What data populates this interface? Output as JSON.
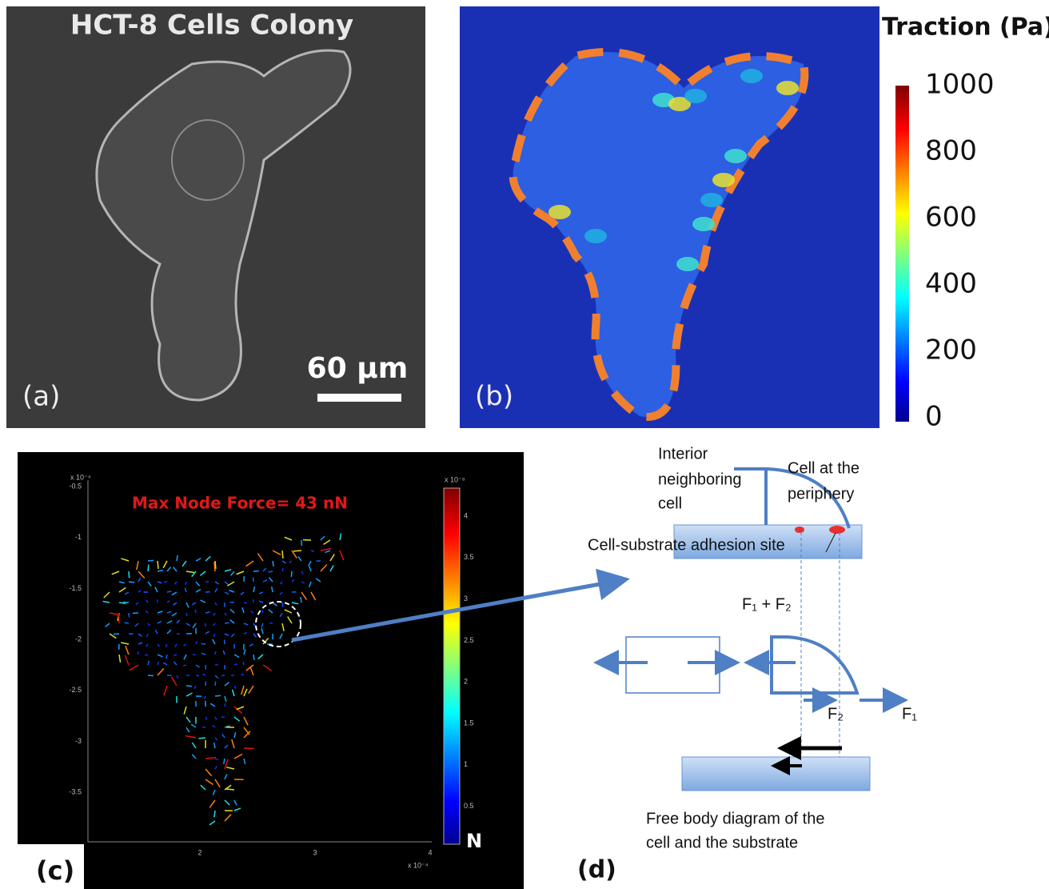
{
  "panels": [
    {
      "label": "(a)",
      "title": "HCT-8 Cells Colony",
      "scale_bar": "60 µm"
    },
    {
      "label": "(b)",
      "colorbar": {
        "title": "Traction (Pa)",
        "ticks": [
          1000,
          800,
          600,
          400,
          200,
          0
        ]
      }
    },
    {
      "label": "(c)",
      "annotation": "Max Node Force= 43 nN",
      "y_ticks": [
        -0.5,
        -1,
        -1.5,
        -2,
        -2.5,
        -3,
        -3.5
      ],
      "y_exponent": "x 10⁻⁴",
      "x_ticks": [
        2,
        3,
        4
      ],
      "x_exponent": "x 10⁻⁴",
      "colorbar": {
        "ticks": [
          4,
          3.5,
          3,
          2.5,
          2,
          1.5,
          1,
          0.5
        ],
        "exponent": "x 10⁻⁸",
        "unit": "N"
      }
    },
    {
      "label": "(d)",
      "interior_cell": [
        "Interior",
        "neighboring",
        "cell"
      ],
      "periphery_cell": [
        "Cell at the",
        "periphery"
      ],
      "adhesion_site": "Cell-substrate adhesion site",
      "force_sum": "F₁ + F₂",
      "force_2": "F₂",
      "force_1": "F₁",
      "caption": [
        "Free body diagram of the",
        "cell and the substrate"
      ]
    }
  ]
}
